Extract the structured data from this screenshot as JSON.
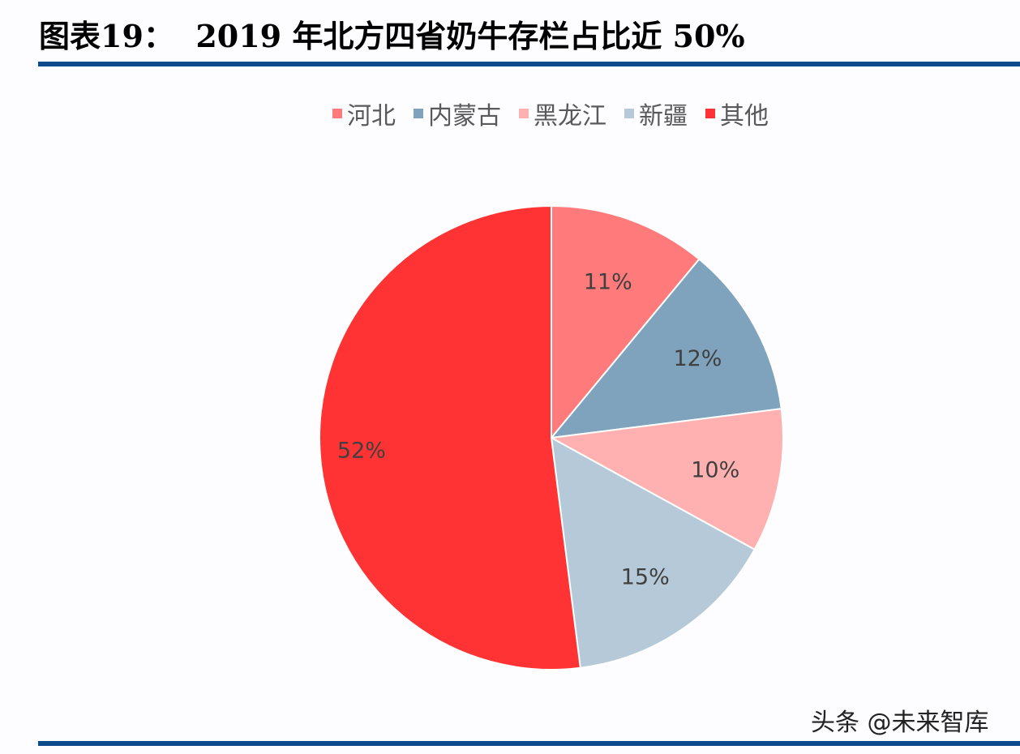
{
  "title": "图表19：  2019 年北方四省奶牛存栏占比近 50%",
  "watermark": "头条 @未来智库",
  "chart_data": {
    "type": "pie",
    "title": "2019 年北方四省奶牛存栏占比近 50%",
    "legend_position": "top",
    "categories": [
      "河北",
      "内蒙古",
      "黑龙江",
      "新疆",
      "其他"
    ],
    "values": [
      11,
      12,
      10,
      15,
      52
    ],
    "labels": [
      "11%",
      "12%",
      "10%",
      "15%",
      "52%"
    ],
    "colors": [
      "#ff7b7b",
      "#7fa3bd",
      "#ffb1b1",
      "#b5c9d8",
      "#ff3333"
    ]
  }
}
